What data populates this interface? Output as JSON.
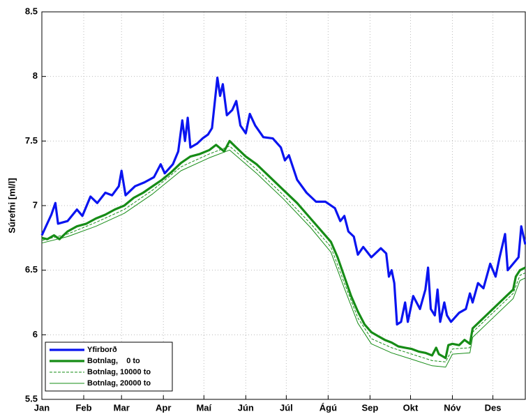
{
  "chart_data": {
    "type": "line",
    "ylabel": "Súrefni [ml/l]",
    "xlim": [
      1,
      359
    ],
    "xticks": [
      {
        "value": 1,
        "label": "Jan"
      },
      {
        "value": 32,
        "label": "Feb"
      },
      {
        "value": 60,
        "label": "Mar"
      },
      {
        "value": 91,
        "label": "Apr"
      },
      {
        "value": 121,
        "label": "Maí"
      },
      {
        "value": 152,
        "label": "Jún"
      },
      {
        "value": 182,
        "label": "Júl"
      },
      {
        "value": 213,
        "label": "Ágú"
      },
      {
        "value": 244,
        "label": "Sep"
      },
      {
        "value": 274,
        "label": "Okt"
      },
      {
        "value": 305,
        "label": "Nóv"
      },
      {
        "value": 335,
        "label": "Des"
      }
    ],
    "ylim": [
      5.5,
      8.5
    ],
    "yticks": [
      5.5,
      6,
      6.5,
      7,
      7.5,
      8,
      8.5
    ],
    "grid": true,
    "legend": "lower-left",
    "series": [
      {
        "name": "Yfirborð",
        "color": "#0a14f0",
        "line_width": 3.2,
        "dash": false,
        "x": [
          1,
          8,
          11,
          13,
          20,
          27,
          31,
          37,
          42,
          48,
          53,
          58,
          60,
          63,
          70,
          77,
          84,
          89,
          92,
          98,
          102,
          105,
          107,
          109,
          111,
          116,
          120,
          124,
          127,
          131,
          133,
          135,
          138,
          142,
          145,
          148,
          152,
          155,
          159,
          165,
          172,
          178,
          181,
          184,
          190,
          197,
          204,
          211,
          218,
          222,
          225,
          228,
          232,
          235,
          239,
          245,
          252,
          256,
          258,
          260,
          262,
          264,
          267,
          270,
          272,
          276,
          281,
          285,
          287,
          289,
          292,
          294,
          296,
          299,
          301,
          304,
          310,
          315,
          318,
          320,
          324,
          328,
          333,
          337,
          340,
          344,
          346,
          350,
          354,
          356,
          359
        ],
        "values": [
          6.77,
          6.93,
          7.02,
          6.86,
          6.88,
          6.97,
          6.92,
          7.07,
          7.02,
          7.1,
          7.08,
          7.15,
          7.27,
          7.08,
          7.15,
          7.18,
          7.22,
          7.32,
          7.25,
          7.32,
          7.42,
          7.66,
          7.5,
          7.68,
          7.45,
          7.48,
          7.52,
          7.55,
          7.6,
          7.99,
          7.85,
          7.94,
          7.7,
          7.74,
          7.81,
          7.62,
          7.56,
          7.71,
          7.62,
          7.53,
          7.52,
          7.45,
          7.35,
          7.39,
          7.2,
          7.1,
          7.03,
          7.03,
          6.98,
          6.88,
          6.92,
          6.8,
          6.76,
          6.62,
          6.68,
          6.6,
          6.67,
          6.63,
          6.45,
          6.5,
          6.4,
          6.08,
          6.1,
          6.25,
          6.1,
          6.3,
          6.2,
          6.35,
          6.52,
          6.2,
          6.15,
          6.35,
          6.1,
          6.25,
          6.15,
          6.1,
          6.17,
          6.2,
          6.32,
          6.25,
          6.4,
          6.36,
          6.55,
          6.45,
          6.6,
          6.78,
          6.5,
          6.55,
          6.6,
          6.84,
          6.7
        ]
      },
      {
        "name": "Botnlag,    0 to",
        "color": "#168c16",
        "line_width": 3.2,
        "dash": false,
        "x": [
          1,
          5,
          10,
          14,
          20,
          27,
          34,
          41,
          48,
          55,
          62,
          69,
          76,
          83,
          90,
          97,
          104,
          111,
          118,
          125,
          130,
          136,
          140,
          145,
          152,
          160,
          170,
          180,
          190,
          200,
          210,
          215,
          220,
          225,
          230,
          235,
          240,
          245,
          250,
          255,
          260,
          265,
          270,
          275,
          280,
          285,
          290,
          293,
          295,
          300,
          302,
          305,
          310,
          314,
          318,
          320,
          325,
          330,
          335,
          340,
          345,
          350,
          352,
          355,
          359
        ],
        "values": [
          6.75,
          6.74,
          6.77,
          6.74,
          6.8,
          6.84,
          6.86,
          6.9,
          6.93,
          6.97,
          7.0,
          7.06,
          7.1,
          7.15,
          7.2,
          7.26,
          7.33,
          7.38,
          7.4,
          7.43,
          7.47,
          7.42,
          7.5,
          7.45,
          7.38,
          7.32,
          7.22,
          7.12,
          7.02,
          6.9,
          6.78,
          6.72,
          6.6,
          6.45,
          6.3,
          6.18,
          6.08,
          6.02,
          5.99,
          5.96,
          5.94,
          5.91,
          5.9,
          5.89,
          5.87,
          5.86,
          5.84,
          5.9,
          5.85,
          5.82,
          5.92,
          5.93,
          5.92,
          5.96,
          5.93,
          6.05,
          6.1,
          6.15,
          6.2,
          6.25,
          6.3,
          6.35,
          6.45,
          6.5,
          6.52
        ]
      },
      {
        "name": "Botnlag, 10000 to",
        "color": "#168c16",
        "line_width": 1,
        "dash": true,
        "x": [
          1,
          20,
          41,
          62,
          83,
          104,
          125,
          140,
          160,
          180,
          200,
          215,
          225,
          235,
          245,
          260,
          275,
          290,
          300,
          305,
          318,
          320,
          335,
          350,
          355,
          359
        ],
        "values": [
          6.73,
          6.78,
          6.87,
          6.97,
          7.12,
          7.3,
          7.4,
          7.46,
          7.28,
          7.08,
          6.86,
          6.68,
          6.4,
          6.13,
          5.97,
          5.9,
          5.85,
          5.8,
          5.79,
          5.89,
          5.9,
          6.02,
          6.17,
          6.32,
          6.46,
          6.48
        ]
      },
      {
        "name": "Botnlag, 20000 to",
        "color": "#168c16",
        "line_width": 1,
        "dash": false,
        "x": [
          1,
          20,
          41,
          62,
          83,
          104,
          125,
          140,
          160,
          180,
          200,
          215,
          225,
          235,
          245,
          260,
          275,
          290,
          300,
          305,
          318,
          320,
          335,
          350,
          355,
          359
        ],
        "values": [
          6.71,
          6.76,
          6.84,
          6.94,
          7.09,
          7.27,
          7.37,
          7.43,
          7.25,
          7.05,
          6.83,
          6.64,
          6.36,
          6.09,
          5.93,
          5.86,
          5.81,
          5.76,
          5.75,
          5.85,
          5.86,
          5.98,
          6.13,
          6.28,
          6.42,
          6.44
        ]
      }
    ]
  }
}
